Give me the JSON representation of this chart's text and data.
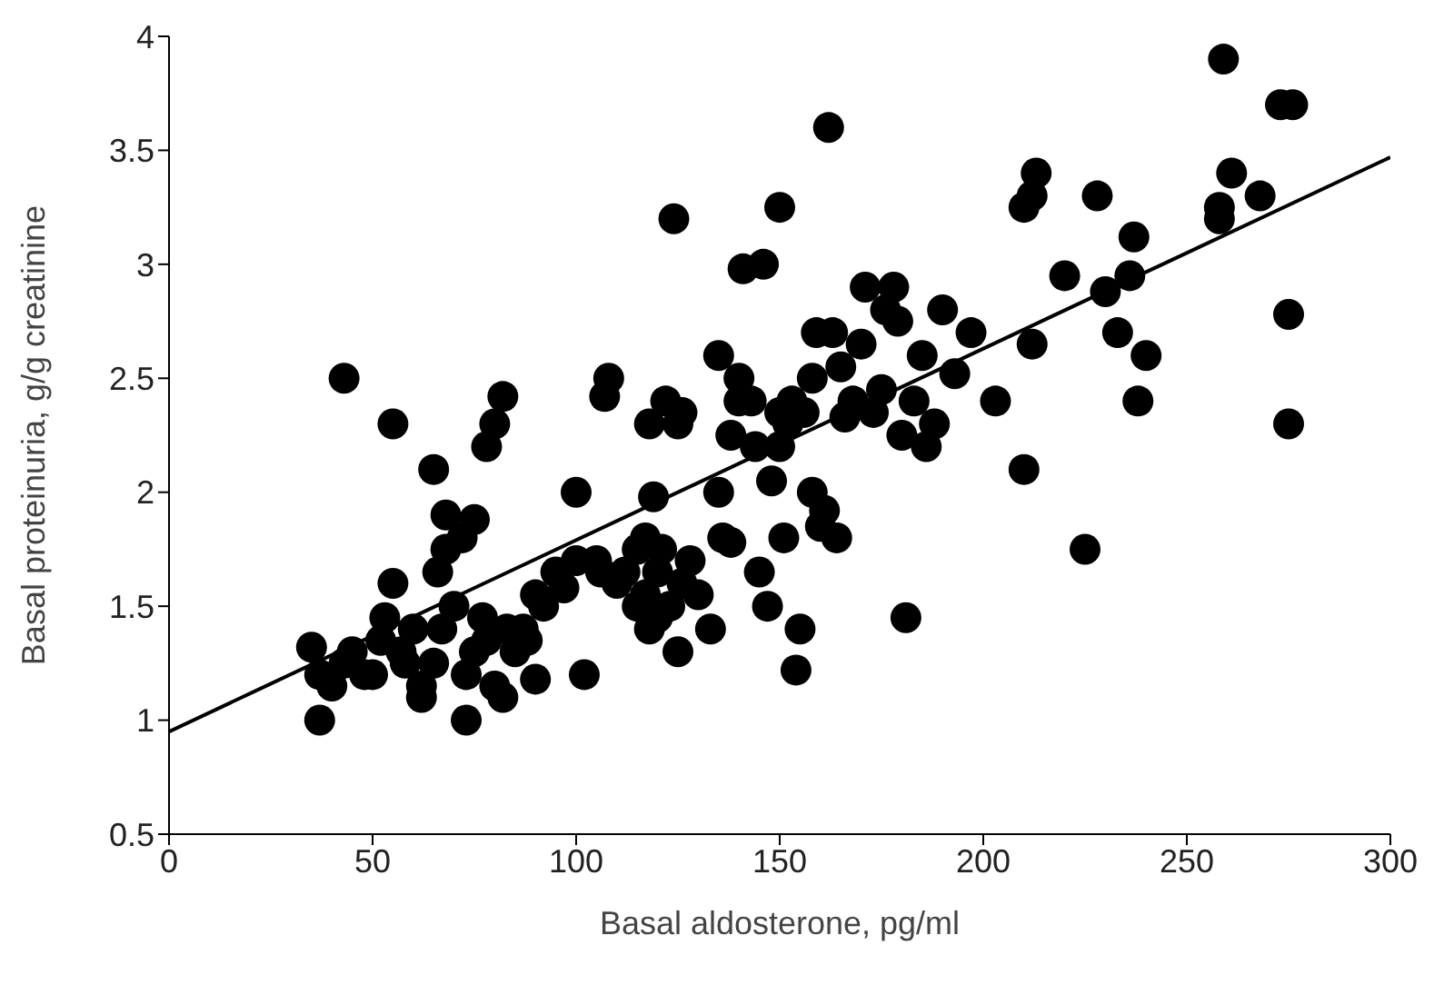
{
  "chart_data": {
    "type": "scatter",
    "xlabel": "Basal aldosterone, pg/ml",
    "ylabel": "Basal proteinuria, g/g creatinine",
    "xlim": [
      0,
      300
    ],
    "xticks": [
      0,
      50,
      100,
      150,
      200,
      250,
      300
    ],
    "ylim": [
      0.5,
      4
    ],
    "yticks": [
      0.5,
      1,
      1.5,
      2,
      2.5,
      3,
      3.5,
      4
    ],
    "series": [
      {
        "marker": "circle",
        "color": "#000000",
        "x": [
          35,
          37,
          37,
          40,
          43,
          43,
          45,
          48,
          50,
          52,
          53,
          55,
          55,
          57,
          58,
          60,
          62,
          62,
          65,
          65,
          66,
          67,
          68,
          68,
          70,
          72,
          73,
          73,
          75,
          75,
          77,
          78,
          78,
          80,
          80,
          82,
          82,
          83,
          85,
          87,
          88,
          90,
          90,
          92,
          95,
          97,
          100,
          100,
          102,
          105,
          106,
          107,
          108,
          110,
          112,
          115,
          115,
          117,
          117,
          118,
          118,
          119,
          120,
          120,
          121,
          122,
          123,
          124,
          125,
          125,
          126,
          126,
          128,
          130,
          133,
          135,
          135,
          136,
          138,
          138,
          140,
          140,
          141,
          143,
          144,
          145,
          146,
          147,
          148,
          150,
          150,
          150,
          151,
          152,
          153,
          154,
          155,
          156,
          158,
          158,
          159,
          160,
          161,
          162,
          163,
          164,
          165,
          166,
          168,
          170,
          171,
          173,
          175,
          176,
          178,
          179,
          180,
          181,
          183,
          185,
          186,
          188,
          190,
          193,
          197,
          203,
          210,
          210,
          212,
          212,
          213,
          220,
          225,
          228,
          230,
          233,
          236,
          237,
          238,
          240,
          258,
          258,
          259,
          261,
          268,
          273,
          276,
          275,
          275
        ],
        "values": [
          1.32,
          1.2,
          1.0,
          1.15,
          2.5,
          1.25,
          1.3,
          1.2,
          1.2,
          1.35,
          1.45,
          1.6,
          2.3,
          1.3,
          1.25,
          1.4,
          1.15,
          1.1,
          1.25,
          2.1,
          1.65,
          1.4,
          1.75,
          1.9,
          1.5,
          1.8,
          1.0,
          1.2,
          1.3,
          1.88,
          1.45,
          2.2,
          1.35,
          2.3,
          1.15,
          1.1,
          2.42,
          1.4,
          1.3,
          1.4,
          1.35,
          1.55,
          1.18,
          1.5,
          1.65,
          1.58,
          2.0,
          1.7,
          1.2,
          1.7,
          1.65,
          2.42,
          2.5,
          1.6,
          1.65,
          1.75,
          1.5,
          1.8,
          1.55,
          1.4,
          2.3,
          1.98,
          1.45,
          1.65,
          1.75,
          2.4,
          1.5,
          3.2,
          1.3,
          2.3,
          2.35,
          1.6,
          1.7,
          1.55,
          1.4,
          2.0,
          2.6,
          1.8,
          1.78,
          2.25,
          2.4,
          2.5,
          2.98,
          2.4,
          2.2,
          1.65,
          3.0,
          1.5,
          2.05,
          2.2,
          2.35,
          3.25,
          1.8,
          2.3,
          2.4,
          1.22,
          1.4,
          2.35,
          2.0,
          2.5,
          2.7,
          1.85,
          1.92,
          3.6,
          2.7,
          1.8,
          2.55,
          2.33,
          2.4,
          2.65,
          2.9,
          2.35,
          2.45,
          2.8,
          2.9,
          2.75,
          2.25,
          1.45,
          2.4,
          2.6,
          2.2,
          2.3,
          2.8,
          2.52,
          2.7,
          2.4,
          3.25,
          2.1,
          3.3,
          2.65,
          3.4,
          2.95,
          1.75,
          3.3,
          2.88,
          2.7,
          2.95,
          3.12,
          2.4,
          2.6,
          3.2,
          3.25,
          3.9,
          3.4,
          3.3,
          3.7,
          3.7,
          2.78,
          2.3
        ]
      },
      {
        "type": "line",
        "color": "#000000",
        "x": [
          0,
          300
        ],
        "values": [
          0.95,
          3.47
        ]
      }
    ]
  }
}
